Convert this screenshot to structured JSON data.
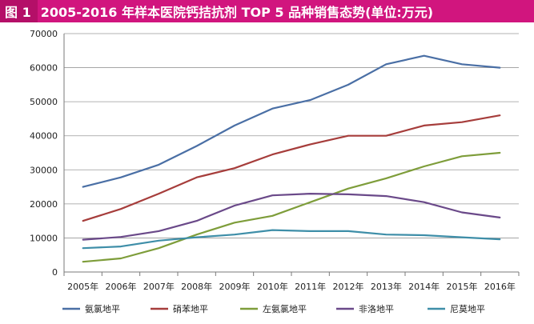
{
  "header": {
    "figure_no": "图 1",
    "title": "2005-2016 年样本医院钙拮抗剂 TOP 5 品种销售态势(单位:万元)",
    "bg_color": "#d1157e",
    "fig_bg_color": "#b40f68"
  },
  "chart_data": {
    "type": "line",
    "title": "2005-2016 年样本医院钙拮抗剂 TOP 5 品种销售态势(单位:万元)",
    "xlabel": "",
    "ylabel": "",
    "categories": [
      "2005年",
      "2006年",
      "2007年",
      "2008年",
      "2009年",
      "2010年",
      "2011年",
      "2012年",
      "2013年",
      "2014年",
      "2015年",
      "2016年"
    ],
    "ylim": [
      0,
      70000
    ],
    "yticks": [
      "0",
      "10000",
      "20000",
      "30000",
      "40000",
      "50000",
      "60000",
      "70000"
    ],
    "grid": true,
    "legend_position": "bottom",
    "series": [
      {
        "name": "氨氯地平",
        "color": "#4a6fa5",
        "values": [
          25000,
          27800,
          31500,
          37000,
          43000,
          48000,
          50500,
          55000,
          61000,
          63500,
          61000,
          60000
        ]
      },
      {
        "name": "硝苯地平",
        "color": "#a63d3b",
        "values": [
          15000,
          18500,
          23000,
          27800,
          30500,
          34500,
          37500,
          40000,
          40000,
          43000,
          44000,
          46000
        ]
      },
      {
        "name": "左氨氯地平",
        "color": "#7e9d3a",
        "values": [
          3000,
          4000,
          7000,
          11000,
          14500,
          16500,
          20500,
          24500,
          27500,
          31000,
          34000,
          35000
        ]
      },
      {
        "name": "非洛地平",
        "color": "#6a4989",
        "values": [
          9500,
          10300,
          12000,
          15000,
          19500,
          22500,
          23000,
          22800,
          22300,
          20500,
          17500,
          16000
        ]
      },
      {
        "name": "尼莫地平",
        "color": "#3e8ea8",
        "values": [
          7000,
          7500,
          9200,
          10200,
          11000,
          12300,
          12000,
          12000,
          11000,
          10800,
          10200,
          9600
        ]
      }
    ]
  }
}
